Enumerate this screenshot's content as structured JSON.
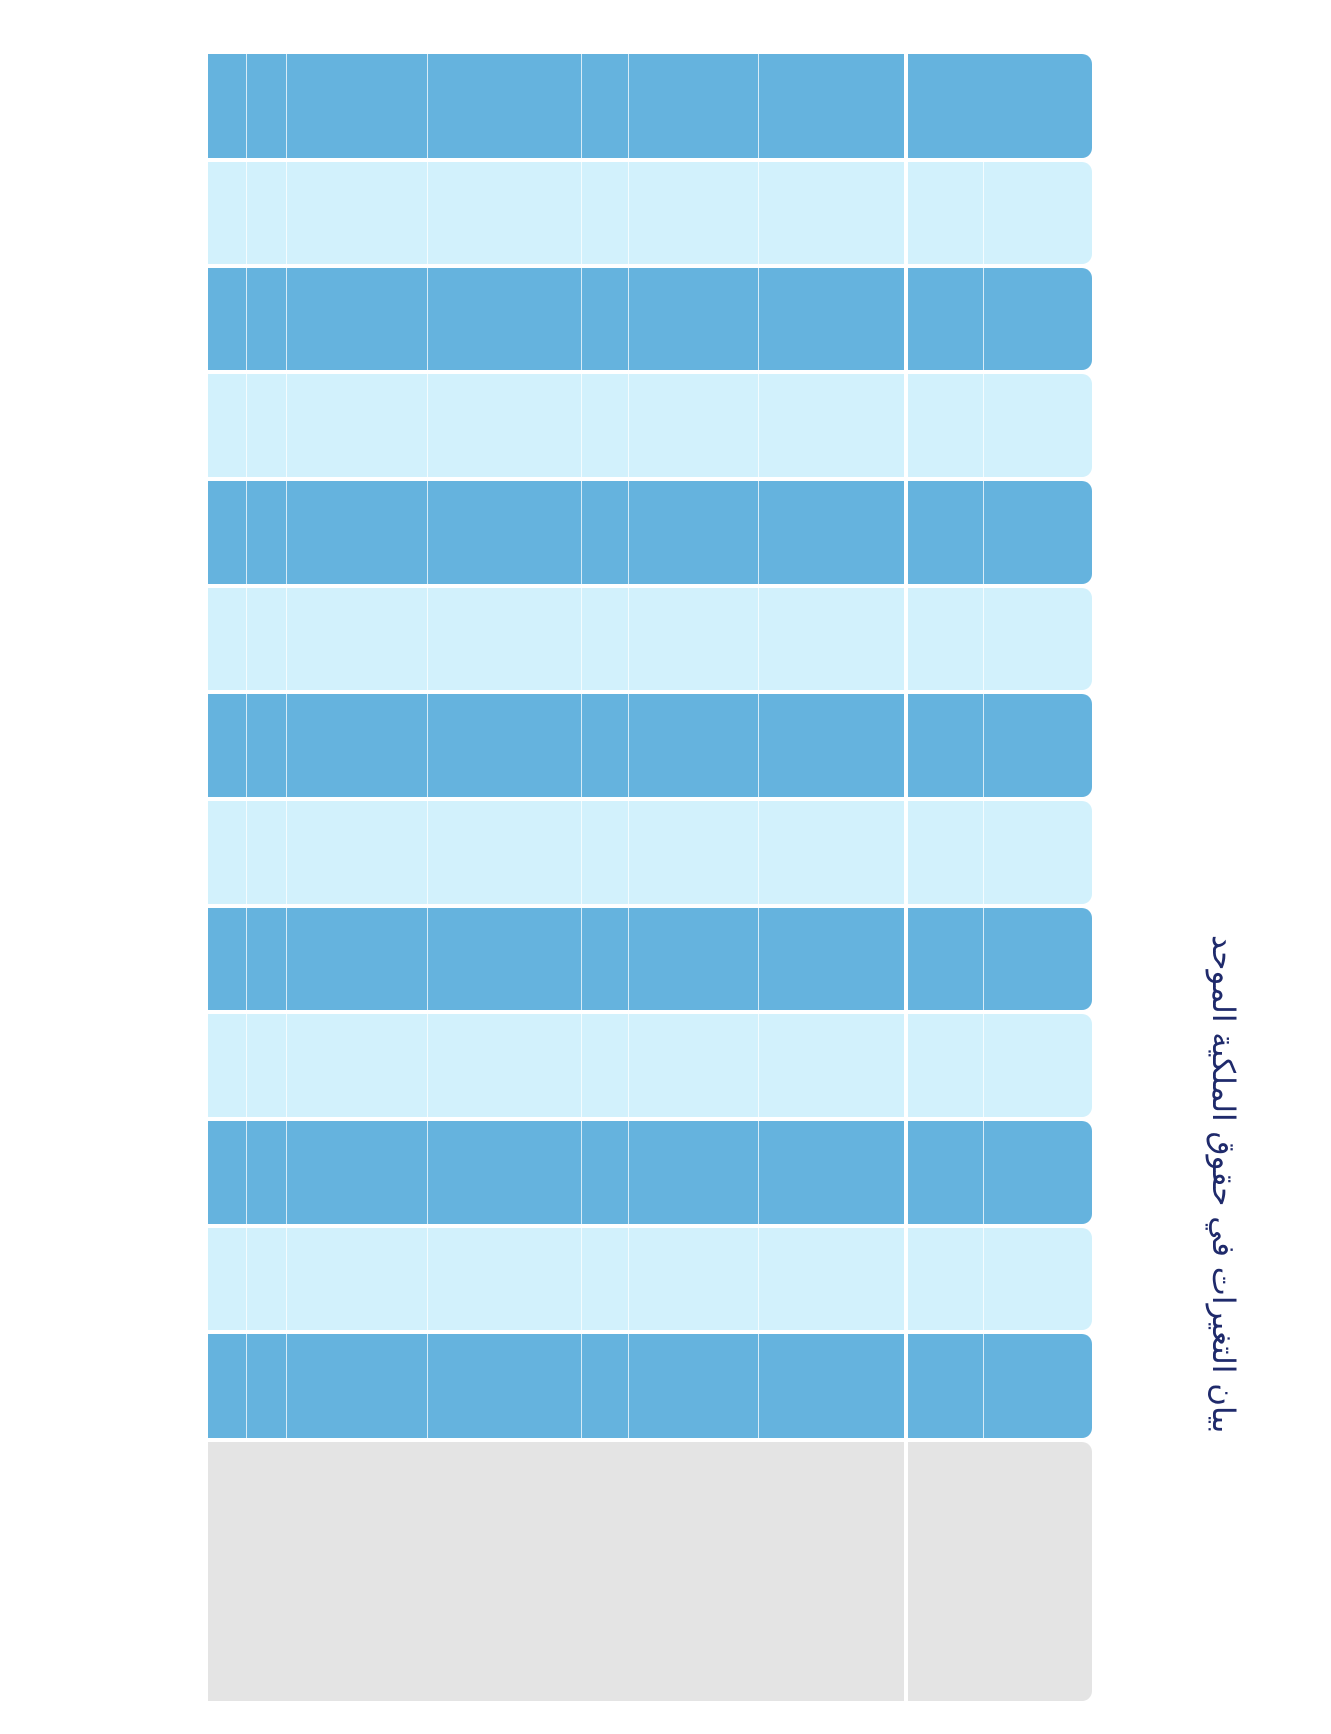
{
  "document": {
    "title": "بيان التغيرات في حقوق الملكية الموحد",
    "colors": {
      "dark_band": "#65b3de",
      "light_band": "#d2f1fc",
      "total_band": "#e4e4e4",
      "title_text": "#1f2a6b"
    },
    "table": {
      "column_count": 8,
      "band_count": 15,
      "cells": []
    }
  }
}
